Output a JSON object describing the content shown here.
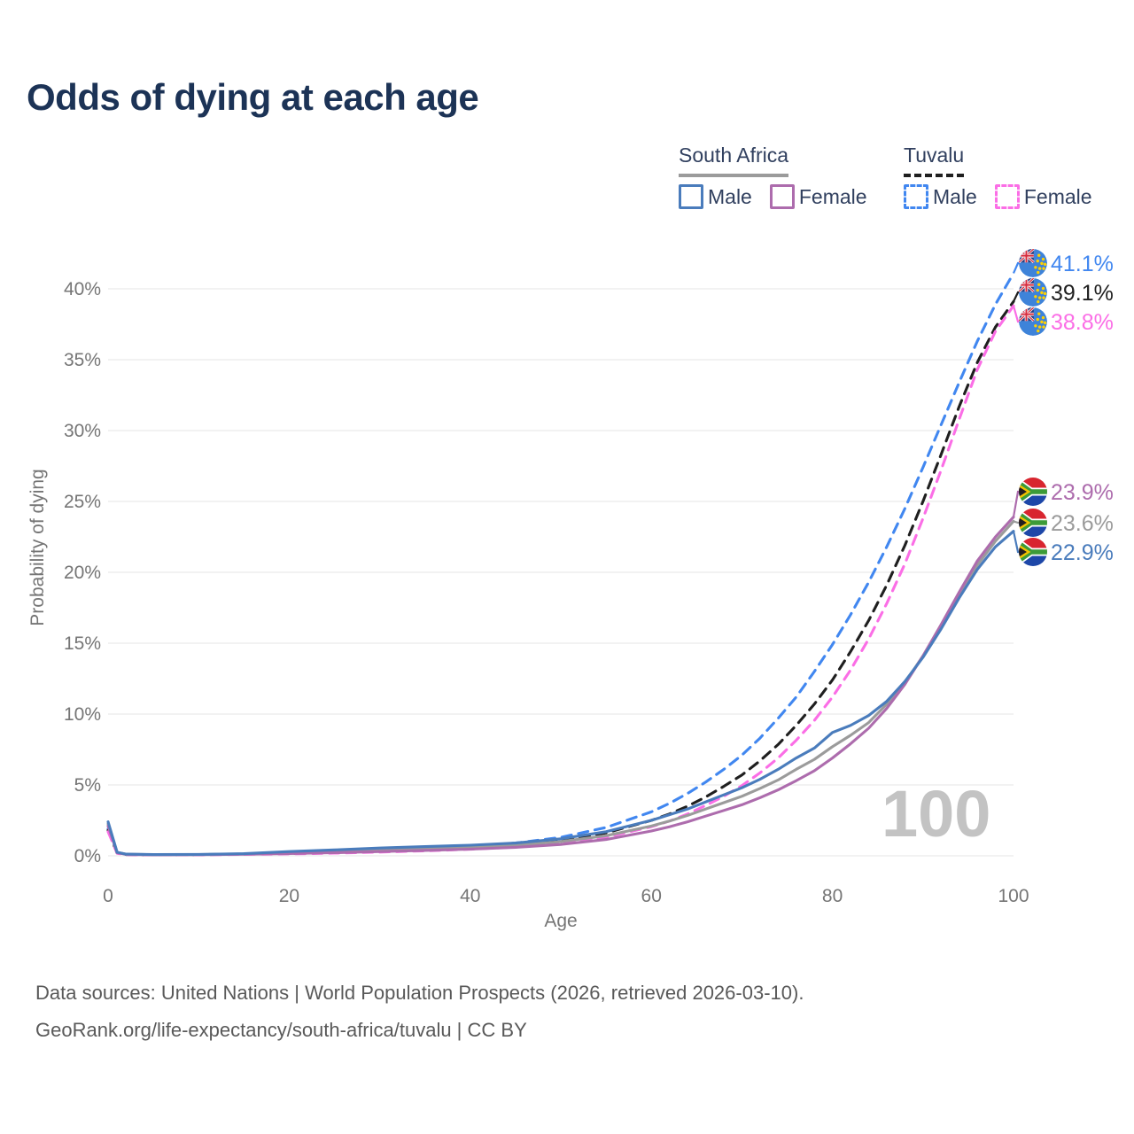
{
  "title": "Odds of dying at each age",
  "legend": {
    "groups": [
      {
        "country": "South Africa",
        "line_style": "solid",
        "underline_color": "#9b9b9b",
        "items": [
          {
            "label": "Male",
            "color": "#4a7cbc"
          },
          {
            "label": "Female",
            "color": "#ad6cad"
          }
        ]
      },
      {
        "country": "Tuvalu",
        "line_style": "dashed",
        "underline_color": "#1f1f1f",
        "items": [
          {
            "label": "Male",
            "color": "#4187f0"
          },
          {
            "label": "Female",
            "color": "#fb6ee6"
          }
        ]
      }
    ]
  },
  "watermark": "100",
  "footer": {
    "line1": "Data sources: United Nations | World Population Prospects (2026, retrieved 2026-03-10).",
    "line2": "GeoRank.org/life-expectancy/south-africa/tuvalu | CC BY"
  },
  "chart_data": {
    "type": "line",
    "title": "Odds of dying at each age",
    "xlabel": "Age",
    "ylabel": "Probability of dying",
    "xlim": [
      0,
      100
    ],
    "ylim_percent": [
      0,
      42
    ],
    "x_ticks": [
      0,
      20,
      40,
      60,
      80,
      100
    ],
    "y_ticks_percent": [
      0,
      5,
      10,
      15,
      20,
      25,
      30,
      35,
      40
    ],
    "grid": "horizontal",
    "tick_label_format": {
      "x": "number",
      "y": "percent"
    },
    "series": [
      {
        "id": "tuvalu-male",
        "name": "Tuvalu Male",
        "country": "Tuvalu",
        "color": "#4187f0",
        "style": "dashed",
        "flag": "tuvalu",
        "end_label": "41.1%",
        "points": [
          [
            0,
            1.9
          ],
          [
            1,
            0.2
          ],
          [
            2,
            0.1
          ],
          [
            5,
            0.08
          ],
          [
            10,
            0.09
          ],
          [
            15,
            0.13
          ],
          [
            20,
            0.2
          ],
          [
            25,
            0.28
          ],
          [
            30,
            0.38
          ],
          [
            35,
            0.5
          ],
          [
            40,
            0.65
          ],
          [
            45,
            0.9
          ],
          [
            50,
            1.3
          ],
          [
            55,
            2.0
          ],
          [
            60,
            3.1
          ],
          [
            62,
            3.7
          ],
          [
            64,
            4.4
          ],
          [
            66,
            5.2
          ],
          [
            68,
            6.1
          ],
          [
            70,
            7.1
          ],
          [
            72,
            8.3
          ],
          [
            74,
            9.7
          ],
          [
            76,
            11.2
          ],
          [
            78,
            13.0
          ],
          [
            80,
            14.9
          ],
          [
            82,
            17.0
          ],
          [
            84,
            19.3
          ],
          [
            86,
            21.8
          ],
          [
            88,
            24.5
          ],
          [
            90,
            27.4
          ],
          [
            92,
            30.4
          ],
          [
            94,
            33.4
          ],
          [
            96,
            36.3
          ],
          [
            98,
            38.9
          ],
          [
            100,
            41.1
          ]
        ]
      },
      {
        "id": "tuvalu-combined",
        "name": "Tuvalu",
        "country": "Tuvalu",
        "color": "#1f1f1f",
        "style": "dashed",
        "flag": "tuvalu",
        "end_label": "39.1%",
        "points": [
          [
            0,
            1.8
          ],
          [
            1,
            0.19
          ],
          [
            2,
            0.09
          ],
          [
            5,
            0.07
          ],
          [
            10,
            0.08
          ],
          [
            15,
            0.12
          ],
          [
            20,
            0.17
          ],
          [
            25,
            0.24
          ],
          [
            30,
            0.33
          ],
          [
            35,
            0.43
          ],
          [
            40,
            0.56
          ],
          [
            45,
            0.76
          ],
          [
            50,
            1.08
          ],
          [
            55,
            1.62
          ],
          [
            60,
            2.5
          ],
          [
            62,
            2.95
          ],
          [
            64,
            3.5
          ],
          [
            66,
            4.15
          ],
          [
            68,
            4.9
          ],
          [
            70,
            5.7
          ],
          [
            72,
            6.7
          ],
          [
            74,
            7.85
          ],
          [
            76,
            9.2
          ],
          [
            78,
            10.7
          ],
          [
            80,
            12.4
          ],
          [
            82,
            14.4
          ],
          [
            84,
            16.6
          ],
          [
            86,
            19.1
          ],
          [
            88,
            21.9
          ],
          [
            90,
            25.0
          ],
          [
            92,
            28.3
          ],
          [
            94,
            31.7
          ],
          [
            96,
            34.8
          ],
          [
            98,
            37.3
          ],
          [
            100,
            39.1
          ]
        ]
      },
      {
        "id": "tuvalu-female",
        "name": "Tuvalu Female",
        "country": "Tuvalu",
        "color": "#fb6ee6",
        "style": "dashed",
        "flag": "tuvalu",
        "end_label": "38.8%",
        "points": [
          [
            0,
            1.7
          ],
          [
            1,
            0.18
          ],
          [
            2,
            0.08
          ],
          [
            5,
            0.06
          ],
          [
            10,
            0.07
          ],
          [
            15,
            0.1
          ],
          [
            20,
            0.14
          ],
          [
            25,
            0.19
          ],
          [
            30,
            0.26
          ],
          [
            35,
            0.35
          ],
          [
            40,
            0.46
          ],
          [
            45,
            0.62
          ],
          [
            50,
            0.88
          ],
          [
            55,
            1.32
          ],
          [
            60,
            2.05
          ],
          [
            62,
            2.45
          ],
          [
            64,
            2.95
          ],
          [
            66,
            3.55
          ],
          [
            68,
            4.2
          ],
          [
            70,
            4.95
          ],
          [
            72,
            5.85
          ],
          [
            74,
            6.9
          ],
          [
            76,
            8.15
          ],
          [
            78,
            9.55
          ],
          [
            80,
            11.2
          ],
          [
            82,
            13.1
          ],
          [
            84,
            15.3
          ],
          [
            86,
            17.8
          ],
          [
            88,
            20.6
          ],
          [
            90,
            23.8
          ],
          [
            92,
            27.2
          ],
          [
            94,
            30.8
          ],
          [
            96,
            34.3
          ],
          [
            98,
            37.0
          ],
          [
            100,
            38.8
          ]
        ]
      },
      {
        "id": "south-africa-combined",
        "name": "South Africa",
        "country": "South Africa",
        "color": "#9b9b9b",
        "style": "solid",
        "flag": "south-africa",
        "end_label": "23.6%",
        "points": [
          [
            0,
            2.25
          ],
          [
            1,
            0.24
          ],
          [
            2,
            0.11
          ],
          [
            5,
            0.08
          ],
          [
            10,
            0.09
          ],
          [
            15,
            0.13
          ],
          [
            20,
            0.23
          ],
          [
            25,
            0.32
          ],
          [
            30,
            0.42
          ],
          [
            35,
            0.52
          ],
          [
            40,
            0.61
          ],
          [
            45,
            0.75
          ],
          [
            50,
            1.0
          ],
          [
            55,
            1.42
          ],
          [
            60,
            2.1
          ],
          [
            62,
            2.45
          ],
          [
            64,
            2.85
          ],
          [
            66,
            3.3
          ],
          [
            68,
            3.75
          ],
          [
            70,
            4.2
          ],
          [
            72,
            4.75
          ],
          [
            74,
            5.35
          ],
          [
            76,
            6.1
          ],
          [
            78,
            6.8
          ],
          [
            80,
            7.7
          ],
          [
            82,
            8.5
          ],
          [
            84,
            9.4
          ],
          [
            86,
            10.7
          ],
          [
            88,
            12.2
          ],
          [
            90,
            14.1
          ],
          [
            92,
            16.2
          ],
          [
            94,
            18.4
          ],
          [
            96,
            20.5
          ],
          [
            98,
            22.2
          ],
          [
            100,
            23.6
          ]
        ]
      },
      {
        "id": "south-africa-female",
        "name": "South Africa Female",
        "country": "South Africa",
        "color": "#ad6cad",
        "style": "solid",
        "flag": "south-africa",
        "end_label": "23.9%",
        "points": [
          [
            0,
            2.1
          ],
          [
            1,
            0.22
          ],
          [
            2,
            0.1
          ],
          [
            5,
            0.07
          ],
          [
            10,
            0.08
          ],
          [
            15,
            0.11
          ],
          [
            20,
            0.16
          ],
          [
            25,
            0.22
          ],
          [
            30,
            0.3
          ],
          [
            35,
            0.38
          ],
          [
            40,
            0.47
          ],
          [
            45,
            0.6
          ],
          [
            50,
            0.8
          ],
          [
            55,
            1.15
          ],
          [
            60,
            1.75
          ],
          [
            62,
            2.05
          ],
          [
            64,
            2.4
          ],
          [
            66,
            2.8
          ],
          [
            68,
            3.2
          ],
          [
            70,
            3.6
          ],
          [
            72,
            4.1
          ],
          [
            74,
            4.65
          ],
          [
            76,
            5.3
          ],
          [
            78,
            6.0
          ],
          [
            80,
            6.9
          ],
          [
            82,
            7.9
          ],
          [
            84,
            9.0
          ],
          [
            86,
            10.4
          ],
          [
            88,
            12.1
          ],
          [
            90,
            14.1
          ],
          [
            92,
            16.3
          ],
          [
            94,
            18.6
          ],
          [
            96,
            20.8
          ],
          [
            98,
            22.5
          ],
          [
            100,
            23.9
          ]
        ]
      },
      {
        "id": "south-africa-male",
        "name": "South Africa Male",
        "country": "South Africa",
        "color": "#4a7cbc",
        "style": "solid",
        "flag": "south-africa",
        "end_label": "22.9%",
        "points": [
          [
            0,
            2.4
          ],
          [
            1,
            0.25
          ],
          [
            2,
            0.12
          ],
          [
            5,
            0.09
          ],
          [
            10,
            0.1
          ],
          [
            15,
            0.15
          ],
          [
            20,
            0.3
          ],
          [
            25,
            0.42
          ],
          [
            30,
            0.55
          ],
          [
            35,
            0.65
          ],
          [
            40,
            0.75
          ],
          [
            45,
            0.9
          ],
          [
            50,
            1.2
          ],
          [
            55,
            1.7
          ],
          [
            60,
            2.5
          ],
          [
            62,
            2.9
          ],
          [
            64,
            3.3
          ],
          [
            66,
            3.8
          ],
          [
            68,
            4.3
          ],
          [
            70,
            4.8
          ],
          [
            72,
            5.4
          ],
          [
            74,
            6.1
          ],
          [
            76,
            6.9
          ],
          [
            78,
            7.6
          ],
          [
            80,
            8.7
          ],
          [
            82,
            9.2
          ],
          [
            84,
            9.9
          ],
          [
            86,
            10.9
          ],
          [
            88,
            12.3
          ],
          [
            90,
            14.0
          ],
          [
            92,
            16.0
          ],
          [
            94,
            18.2
          ],
          [
            96,
            20.2
          ],
          [
            98,
            21.8
          ],
          [
            100,
            22.9
          ]
        ]
      }
    ]
  }
}
